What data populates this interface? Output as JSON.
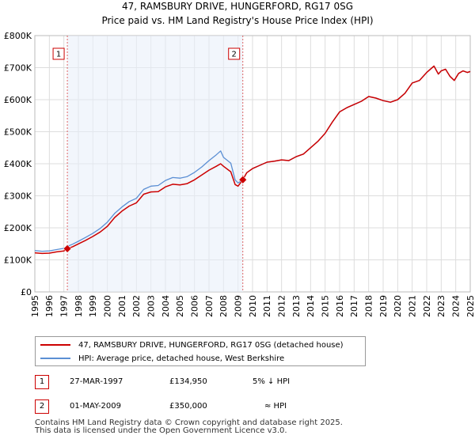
{
  "chart_data": {
    "type": "line",
    "title": "47, RAMSBURY DRIVE, HUNGERFORD, RG17 0SG",
    "subtitle": "Price paid vs. HM Land Registry's House Price Index (HPI)",
    "xlim": [
      1995,
      2025
    ],
    "ylim": [
      0,
      800000
    ],
    "x_ticks": [
      "1995",
      "1996",
      "1997",
      "1998",
      "1999",
      "2000",
      "2001",
      "2002",
      "2003",
      "2004",
      "2005",
      "2006",
      "2007",
      "2008",
      "2009",
      "2010",
      "2011",
      "2012",
      "2013",
      "2014",
      "2015",
      "2016",
      "2017",
      "2018",
      "2019",
      "2020",
      "2021",
      "2022",
      "2023",
      "2024",
      "2025"
    ],
    "y_ticks": [
      {
        "value": 0,
        "label": "£0"
      },
      {
        "value": 100000,
        "label": "£100K"
      },
      {
        "value": 200000,
        "label": "£200K"
      },
      {
        "value": 300000,
        "label": "£300K"
      },
      {
        "value": 400000,
        "label": "£400K"
      },
      {
        "value": 500000,
        "label": "£500K"
      },
      {
        "value": 600000,
        "label": "£600K"
      },
      {
        "value": 700000,
        "label": "£700K"
      },
      {
        "value": 800000,
        "label": "£800K"
      }
    ],
    "series": [
      {
        "name": "47, RAMSBURY DRIVE, HUNGERFORD, RG17 0SG (detached house)",
        "color": "#cc0000",
        "x": [
          1995.0,
          1995.5,
          1996.0,
          1996.5,
          1997.0,
          1997.24,
          1997.6,
          1998.0,
          1998.5,
          1999.0,
          1999.5,
          2000.0,
          2000.5,
          2001.0,
          2001.5,
          2002.0,
          2002.5,
          2003.0,
          2003.5,
          2004.0,
          2004.5,
          2005.0,
          2005.5,
          2006.0,
          2006.5,
          2007.0,
          2007.5,
          2007.8,
          2008.0,
          2008.5,
          2008.8,
          2009.0,
          2009.33,
          2009.6,
          2010.0,
          2010.5,
          2011.0,
          2011.5,
          2012.0,
          2012.5,
          2013.0,
          2013.5,
          2014.0,
          2014.5,
          2015.0,
          2015.5,
          2016.0,
          2016.5,
          2017.0,
          2017.5,
          2018.0,
          2018.5,
          2019.0,
          2019.5,
          2020.0,
          2020.5,
          2021.0,
          2021.5,
          2022.0,
          2022.5,
          2022.8,
          2023.0,
          2023.3,
          2023.6,
          2023.9,
          2024.2,
          2024.5,
          2024.8,
          2025.0
        ],
        "y": [
          122000,
          120000,
          121000,
          125000,
          128000,
          134950,
          141000,
          150000,
          161000,
          173000,
          187000,
          205000,
          232000,
          252000,
          268000,
          278000,
          305000,
          312000,
          313000,
          328000,
          336000,
          334000,
          338000,
          350000,
          365000,
          380000,
          392000,
          400000,
          392000,
          375000,
          335000,
          330000,
          350000,
          372000,
          385000,
          395000,
          405000,
          408000,
          412000,
          410000,
          422000,
          430000,
          450000,
          470000,
          495000,
          530000,
          562000,
          575000,
          585000,
          595000,
          610000,
          605000,
          597000,
          592000,
          600000,
          620000,
          652000,
          660000,
          685000,
          705000,
          680000,
          690000,
          695000,
          673000,
          660000,
          682000,
          690000,
          685000,
          688000
        ]
      },
      {
        "name": "HPI: Average price, detached house, West Berkshire",
        "color": "#5b8fd4",
        "x": [
          1995.0,
          1995.5,
          1996.0,
          1996.5,
          1997.0,
          1997.24,
          1997.6,
          1998.0,
          1998.5,
          1999.0,
          1999.5,
          2000.0,
          2000.5,
          2001.0,
          2001.5,
          2002.0,
          2002.5,
          2003.0,
          2003.5,
          2004.0,
          2004.5,
          2005.0,
          2005.5,
          2006.0,
          2006.5,
          2007.0,
          2007.5,
          2007.8,
          2008.0,
          2008.5,
          2008.8,
          2009.0,
          2009.33,
          2009.6,
          2010.0,
          2010.5,
          2011.0,
          2011.5,
          2012.0,
          2012.5,
          2013.0,
          2013.5,
          2014.0,
          2014.5,
          2015.0,
          2015.5,
          2016.0,
          2016.5,
          2017.0,
          2017.5,
          2018.0,
          2018.5,
          2019.0,
          2019.5,
          2020.0,
          2020.5,
          2021.0,
          2021.5,
          2022.0,
          2022.5,
          2022.8,
          2023.0,
          2023.3,
          2023.6,
          2023.9,
          2024.2,
          2024.5,
          2024.8,
          2025.0
        ],
        "y": [
          129000,
          127000,
          128000,
          132000,
          136000,
          142000,
          149000,
          158000,
          170000,
          183000,
          198000,
          218000,
          245000,
          265000,
          282000,
          292000,
          320000,
          330000,
          332000,
          348000,
          357000,
          355000,
          360000,
          373000,
          390000,
          410000,
          428000,
          440000,
          420000,
          402000,
          350000,
          340000,
          350000,
          372000,
          385000,
          395000,
          405000,
          408000,
          412000,
          410000,
          422000,
          430000,
          450000,
          470000,
          495000,
          530000,
          562000,
          575000,
          585000,
          595000,
          610000,
          605000,
          597000,
          592000,
          600000,
          620000,
          652000,
          660000,
          685000,
          705000,
          680000,
          690000,
          695000,
          673000,
          660000,
          682000,
          690000,
          685000,
          688000
        ]
      }
    ],
    "markers": [
      {
        "label": "1",
        "x": 1997.24,
        "y": 134950
      },
      {
        "label": "2",
        "x": 2009.33,
        "y": 350000
      }
    ]
  },
  "legend": {
    "property_label": "47, RAMSBURY DRIVE, HUNGERFORD, RG17 0SG (detached house)",
    "hpi_label": "HPI: Average price, detached house, West Berkshire"
  },
  "transactions": [
    {
      "num": "1",
      "date": "27-MAR-1997",
      "price": "£134,950",
      "hpi": "5% ↓ HPI"
    },
    {
      "num": "2",
      "date": "01-MAY-2009",
      "price": "£350,000",
      "hpi": "≈ HPI"
    }
  ],
  "footer": {
    "line1": "Contains HM Land Registry data © Crown copyright and database right 2025.",
    "line2": "This data is licensed under the Open Government Licence v3.0."
  },
  "colors": {
    "property": "#cc0000",
    "hpi": "#5b8fd4",
    "marker_border": "#cc0000"
  }
}
